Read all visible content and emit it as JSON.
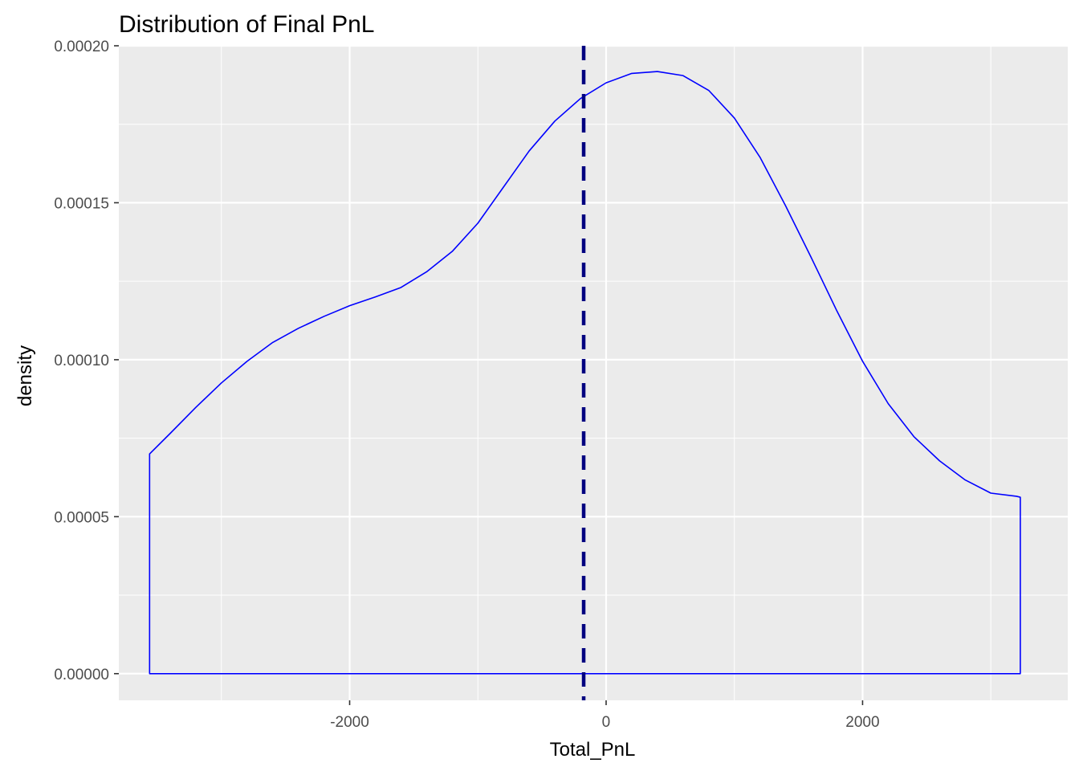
{
  "chart_data": {
    "type": "area",
    "title": "Distribution of Final PnL",
    "xlabel": "Total_PnL",
    "ylabel": "density",
    "xlim": [
      -3800,
      3600
    ],
    "ylim": [
      -8.5e-06,
      0.0002
    ],
    "x_ticks": [
      -2000,
      0,
      2000
    ],
    "x_tick_labels": [
      "-2000",
      "0",
      "2000"
    ],
    "y_ticks": [
      0,
      5e-05,
      0.0001,
      0.00015,
      0.0002
    ],
    "y_tick_labels": [
      "0.00000",
      "0.00005",
      "0.00010",
      "0.00015",
      "0.00020"
    ],
    "grid": true,
    "background": "#EBEBEB",
    "series": [
      {
        "color": "#0000FF",
        "fill": "none",
        "x": [
          -3560,
          -3400,
          -3200,
          -3000,
          -2800,
          -2600,
          -2400,
          -2200,
          -2000,
          -1800,
          -1600,
          -1400,
          -1200,
          -1000,
          -800,
          -600,
          -400,
          -200,
          0,
          200,
          400,
          600,
          800,
          1000,
          1200,
          1400,
          1600,
          1800,
          2000,
          2200,
          2400,
          2600,
          2800,
          3000,
          3200,
          3230
        ],
        "y": [
          7e-05,
          7.65e-05,
          8.48e-05,
          9.26e-05,
          9.95e-05,
          0.0001055,
          0.00011,
          0.0001138,
          0.0001172,
          0.00012,
          0.000123,
          0.000128,
          0.0001345,
          0.0001435,
          0.000155,
          0.0001665,
          0.000176,
          0.0001832,
          0.0001882,
          0.0001912,
          0.0001918,
          0.0001905,
          0.0001858,
          0.000177,
          0.0001645,
          0.000149,
          0.0001325,
          0.0001155,
          9.95e-05,
          8.6e-05,
          7.55e-05,
          6.78e-05,
          6.17e-05,
          5.75e-05,
          5.65e-05,
          5.62e-05
        ]
      }
    ],
    "vline": {
      "x": -175,
      "color": "#000080",
      "style": "dashed"
    }
  }
}
